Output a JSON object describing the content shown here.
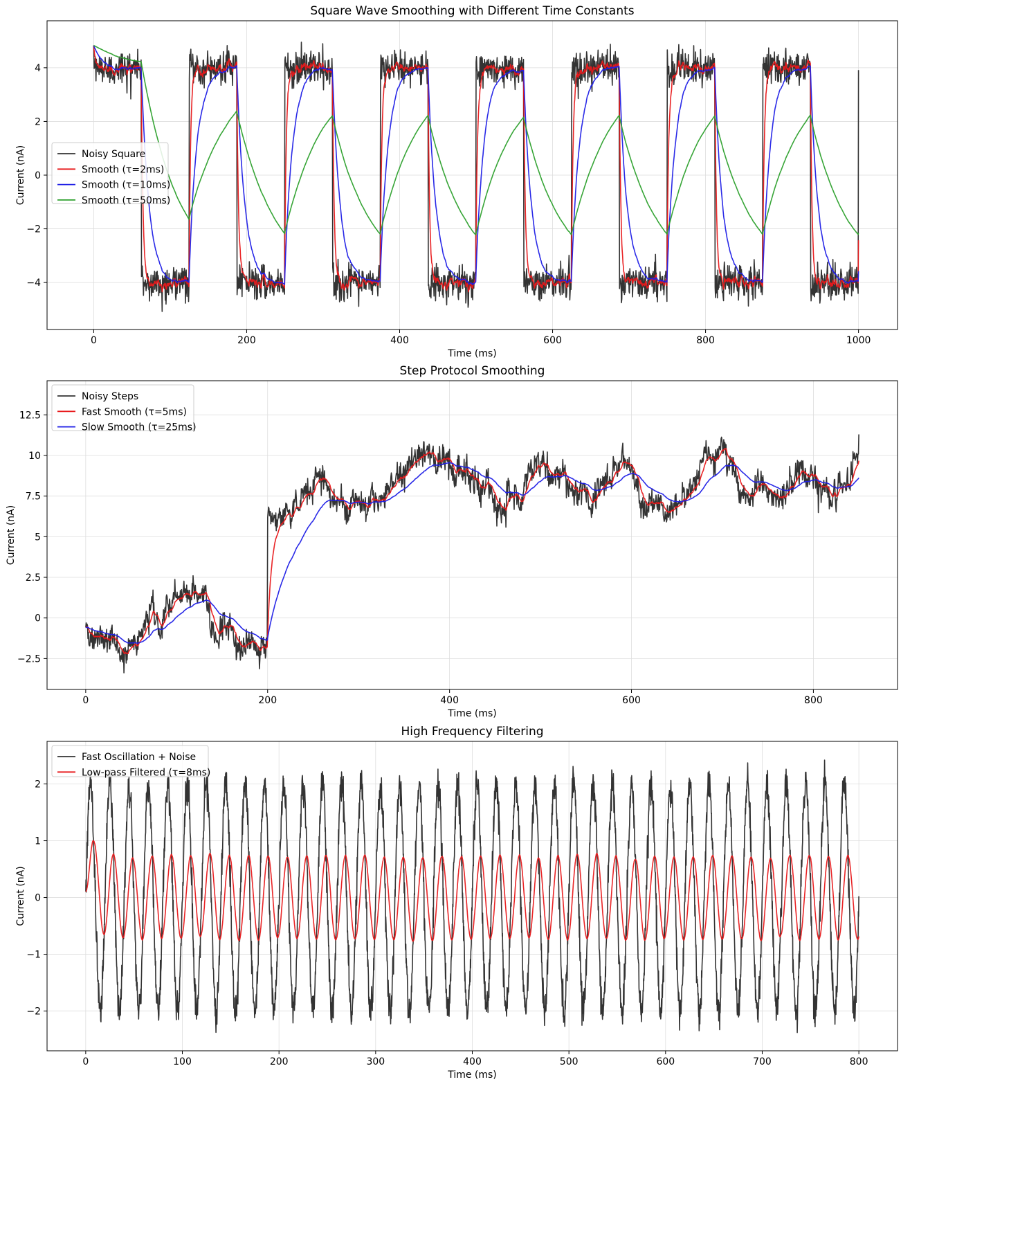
{
  "chart_data": [
    {
      "type": "line",
      "title": "Square Wave Smoothing with Different Time Constants",
      "xlabel": "Time (ms)",
      "ylabel": "Current (nA)",
      "xlim": [
        -61,
        1051
      ],
      "ylim": [
        -5.75,
        5.75
      ],
      "xticks": [
        0,
        200,
        400,
        600,
        800,
        1000
      ],
      "yticks": [
        -4,
        -2,
        0,
        2,
        4
      ],
      "yticks_minus": true,
      "grid": true,
      "legend_position": "center-left",
      "signal": {
        "kind": "square",
        "amplitude": 4,
        "period_ms": 125,
        "duration_ms": 1000,
        "dt_ms": 0.5,
        "noise_sd_nA": 0.3
      },
      "series": [
        {
          "name": "Noisy Square",
          "color": "#333333",
          "role": "noisy"
        },
        {
          "name": "Smooth (τ=2ms)",
          "color": "#e8191b",
          "tau_ms": 2
        },
        {
          "name": "Smooth (τ=10ms)",
          "color": "#1f1fe6",
          "tau_ms": 10
        },
        {
          "name": "Smooth (τ=50ms)",
          "color": "#2ca02c",
          "tau_ms": 50
        }
      ]
    },
    {
      "type": "line",
      "title": "Step Protocol Smoothing",
      "xlabel": "Time (ms)",
      "ylabel": "Current (nA)",
      "xlim": [
        -42.5,
        892.5
      ],
      "ylim": [
        -4.4,
        14.6
      ],
      "xticks": [
        0,
        200,
        400,
        600,
        800
      ],
      "yticks": [
        -2.5,
        0.0,
        2.5,
        5.0,
        7.5,
        10.0,
        12.5
      ],
      "yticks_minus": true,
      "grid": true,
      "legend_position": "top-left",
      "signal": {
        "kind": "step",
        "baseline_nA": 0,
        "step_nA": 8,
        "step_at_ms": 200,
        "duration_ms": 850,
        "dt_ms": 0.5,
        "noise_sd_nA": 1.2
      },
      "series": [
        {
          "name": "Noisy Steps",
          "color": "#333333",
          "role": "noisy"
        },
        {
          "name": "Fast Smooth (τ=5ms)",
          "color": "#e8191b",
          "tau_ms": 5
        },
        {
          "name": "Slow Smooth (τ=25ms)",
          "color": "#1f1fe6",
          "tau_ms": 25
        }
      ]
    },
    {
      "type": "line",
      "title": "High Frequency Filtering",
      "xlabel": "Time (ms)",
      "ylabel": "Current (nA)",
      "xlim": [
        -40,
        840
      ],
      "ylim": [
        -2.7,
        2.75
      ],
      "xticks": [
        0,
        100,
        200,
        300,
        400,
        500,
        600,
        700,
        800
      ],
      "yticks": [
        -2,
        -1,
        0,
        1,
        2
      ],
      "yticks_minus": true,
      "grid": true,
      "legend_position": "top-left",
      "signal": {
        "kind": "sine",
        "amplitude_nA": 2,
        "frequency_hz": 50,
        "duration_ms": 800,
        "dt_ms": 0.25,
        "noise_sd_nA": 0.15
      },
      "series": [
        {
          "name": "Fast Oscillation + Noise",
          "color": "#333333",
          "role": "noisy"
        },
        {
          "name": "Low-pass Filtered (τ=8ms)",
          "color": "#e8191b",
          "tau_ms": 8
        }
      ]
    }
  ]
}
